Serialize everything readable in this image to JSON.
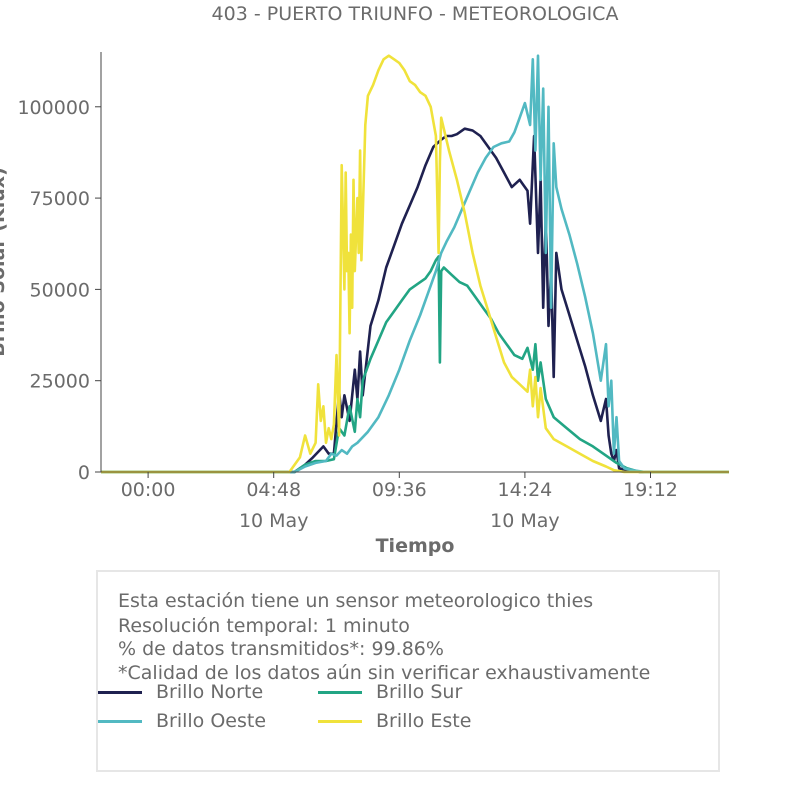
{
  "chart_data": {
    "type": "line",
    "title": "403 - PUERTO TRIUNFO - METEOROLOGICA",
    "xlabel": "Tiempo",
    "ylabel": "Brillo Solar (Klux)",
    "xlim": [
      -1.8,
      22.2
    ],
    "ylim": [
      0,
      115000
    ],
    "yticks": [
      0,
      25000,
      50000,
      75000,
      100000
    ],
    "xticks": [
      {
        "x": 0.0,
        "label": "00:00",
        "sub": ""
      },
      {
        "x": 4.8,
        "label": "04:48",
        "sub": "10 May"
      },
      {
        "x": 9.6,
        "label": "09:36",
        "sub": ""
      },
      {
        "x": 14.4,
        "label": "14:24",
        "sub": "10 May"
      },
      {
        "x": 19.2,
        "label": "19:12",
        "sub": ""
      }
    ],
    "series": [
      {
        "name": "Brillo Norte",
        "color": "#1f2150",
        "x": [
          -1.8,
          5.6,
          6.0,
          6.3,
          6.7,
          6.9,
          7.1,
          7.3,
          7.4,
          7.5,
          7.7,
          7.9,
          8.0,
          8.1,
          8.2,
          8.5,
          8.8,
          9.1,
          9.4,
          9.7,
          10.0,
          10.3,
          10.6,
          10.9,
          11.2,
          11.4,
          11.6,
          11.8,
          12.1,
          12.4,
          12.7,
          13.0,
          13.3,
          13.6,
          13.9,
          14.2,
          14.3,
          14.5,
          14.6,
          14.75,
          14.9,
          15.0,
          15.1,
          15.2,
          15.3,
          15.4,
          15.5,
          15.6,
          15.8,
          16.1,
          16.4,
          16.7,
          17.0,
          17.3,
          17.5,
          17.6,
          17.7,
          17.8,
          17.9,
          18.0,
          18.3,
          18.8,
          22.2
        ],
        "y": [
          0,
          0,
          2000,
          4000,
          7000,
          5000,
          5000,
          22000,
          15000,
          21000,
          14000,
          28000,
          20000,
          33000,
          21000,
          40000,
          47000,
          56000,
          62000,
          68000,
          73000,
          78000,
          84000,
          89000,
          91000,
          92000,
          92000,
          92500,
          94000,
          93500,
          92000,
          89000,
          86000,
          82000,
          78000,
          80000,
          79000,
          77000,
          68000,
          92000,
          60000,
          80000,
          45000,
          70000,
          40000,
          55000,
          26000,
          60000,
          50000,
          43000,
          36000,
          29000,
          21000,
          14000,
          20000,
          10000,
          5000,
          3000,
          6000,
          1000,
          500,
          0,
          0
        ]
      },
      {
        "name": "Brillo Sur",
        "color": "#22a584",
        "x": [
          -1.8,
          5.6,
          6.0,
          6.4,
          6.8,
          7.1,
          7.3,
          7.5,
          7.7,
          7.9,
          8.0,
          8.1,
          8.2,
          8.5,
          8.8,
          9.1,
          9.4,
          9.7,
          10.0,
          10.3,
          10.6,
          10.8,
          11.0,
          11.1,
          11.15,
          11.2,
          11.3,
          11.6,
          11.9,
          12.2,
          12.5,
          12.8,
          13.1,
          13.4,
          13.7,
          14.0,
          14.3,
          14.5,
          14.7,
          14.8,
          14.9,
          15.0,
          15.2,
          15.5,
          16.0,
          16.5,
          17.0,
          17.5,
          17.9,
          18.3,
          18.8,
          22.2
        ],
        "y": [
          0,
          0,
          2000,
          3000,
          3000,
          3500,
          12000,
          10000,
          18000,
          11000,
          20000,
          15000,
          25000,
          31000,
          36000,
          41000,
          44000,
          47000,
          50000,
          51500,
          53000,
          55000,
          58000,
          59000,
          30000,
          55000,
          56000,
          54000,
          52000,
          51000,
          48000,
          45000,
          42000,
          38000,
          35000,
          32000,
          31000,
          34000,
          28000,
          35000,
          25000,
          30000,
          20000,
          15000,
          12000,
          9000,
          7000,
          4500,
          2500,
          1000,
          0,
          0
        ]
      },
      {
        "name": "Brillo Oeste",
        "color": "#52b9c2",
        "x": [
          -1.8,
          5.6,
          6.0,
          6.4,
          6.8,
          7.0,
          7.2,
          7.4,
          7.6,
          7.8,
          8.0,
          8.4,
          8.8,
          9.2,
          9.6,
          10.0,
          10.4,
          10.8,
          11.0,
          11.2,
          11.4,
          11.7,
          12.0,
          12.3,
          12.6,
          12.9,
          13.2,
          13.5,
          13.8,
          14.0,
          14.2,
          14.4,
          14.6,
          14.7,
          14.8,
          14.9,
          15.0,
          15.1,
          15.2,
          15.3,
          15.4,
          15.5,
          15.6,
          15.8,
          16.1,
          16.4,
          16.7,
          17.0,
          17.3,
          17.5,
          17.6,
          17.7,
          17.8,
          17.9,
          18.0,
          18.2,
          18.5,
          19.0,
          22.2
        ],
        "y": [
          0,
          0,
          1500,
          2500,
          3000,
          5000,
          4500,
          6000,
          5000,
          7000,
          8000,
          11000,
          15000,
          21000,
          28000,
          36000,
          43000,
          51000,
          55000,
          60000,
          63000,
          67000,
          72000,
          77000,
          82000,
          86000,
          89000,
          90000,
          90500,
          93000,
          97000,
          101000,
          95000,
          113000,
          88000,
          114000,
          80000,
          105000,
          60000,
          100000,
          45000,
          90000,
          78000,
          72000,
          65000,
          57000,
          48000,
          38000,
          25000,
          35000,
          18000,
          25000,
          5000,
          15000,
          3000,
          1000,
          500,
          0,
          0
        ]
      },
      {
        "name": "Brillo Este",
        "color": "#f0e23b",
        "x": [
          -1.8,
          5.4,
          5.6,
          5.8,
          6.0,
          6.2,
          6.4,
          6.5,
          6.6,
          6.7,
          6.8,
          6.9,
          7.0,
          7.1,
          7.2,
          7.3,
          7.4,
          7.5,
          7.55,
          7.6,
          7.65,
          7.7,
          7.75,
          7.8,
          7.85,
          7.9,
          8.0,
          8.05,
          8.1,
          8.15,
          8.2,
          8.3,
          8.4,
          8.6,
          8.8,
          9.0,
          9.2,
          9.4,
          9.6,
          9.8,
          10.0,
          10.2,
          10.4,
          10.6,
          10.8,
          11.0,
          11.1,
          11.15,
          11.2,
          11.3,
          11.5,
          11.8,
          12.1,
          12.4,
          12.7,
          13.0,
          13.3,
          13.6,
          13.9,
          14.2,
          14.5,
          14.6,
          14.7,
          14.8,
          14.9,
          15.0,
          15.2,
          15.5,
          16.0,
          16.5,
          17.0,
          17.5,
          17.8,
          18.2,
          18.8,
          22.2
        ],
        "y": [
          0,
          0,
          2000,
          4000,
          10000,
          5000,
          8000,
          24000,
          14000,
          18000,
          8000,
          12000,
          9000,
          13000,
          32000,
          10000,
          84000,
          50000,
          82000,
          55000,
          60000,
          38000,
          65000,
          45000,
          80000,
          55000,
          75000,
          60000,
          88000,
          58000,
          70000,
          95000,
          103000,
          106000,
          110000,
          113000,
          114000,
          113000,
          112000,
          110000,
          107000,
          106000,
          104000,
          103000,
          100000,
          92000,
          60000,
          85000,
          97000,
          94000,
          88000,
          80000,
          71000,
          60000,
          51000,
          44000,
          37000,
          30000,
          26000,
          24000,
          22000,
          28000,
          18000,
          26000,
          15000,
          23000,
          12000,
          9000,
          7000,
          5000,
          3000,
          1500,
          500,
          0,
          0,
          0
        ]
      }
    ]
  },
  "info_box": {
    "line1": "Esta estación tiene un sensor meteorologico thies",
    "line2": "Resolución temporal: 1 minuto",
    "line3": "% de datos transmitidos*: 99.86%",
    "line4": "*Calidad de los datos aún sin verificar exhaustivamente"
  },
  "legend": [
    {
      "label": "Brillo Norte",
      "color": "#1f2150"
    },
    {
      "label": "Brillo Sur",
      "color": "#22a584"
    },
    {
      "label": "Brillo Oeste",
      "color": "#52b9c2"
    },
    {
      "label": "Brillo Este",
      "color": "#f0e23b"
    }
  ]
}
